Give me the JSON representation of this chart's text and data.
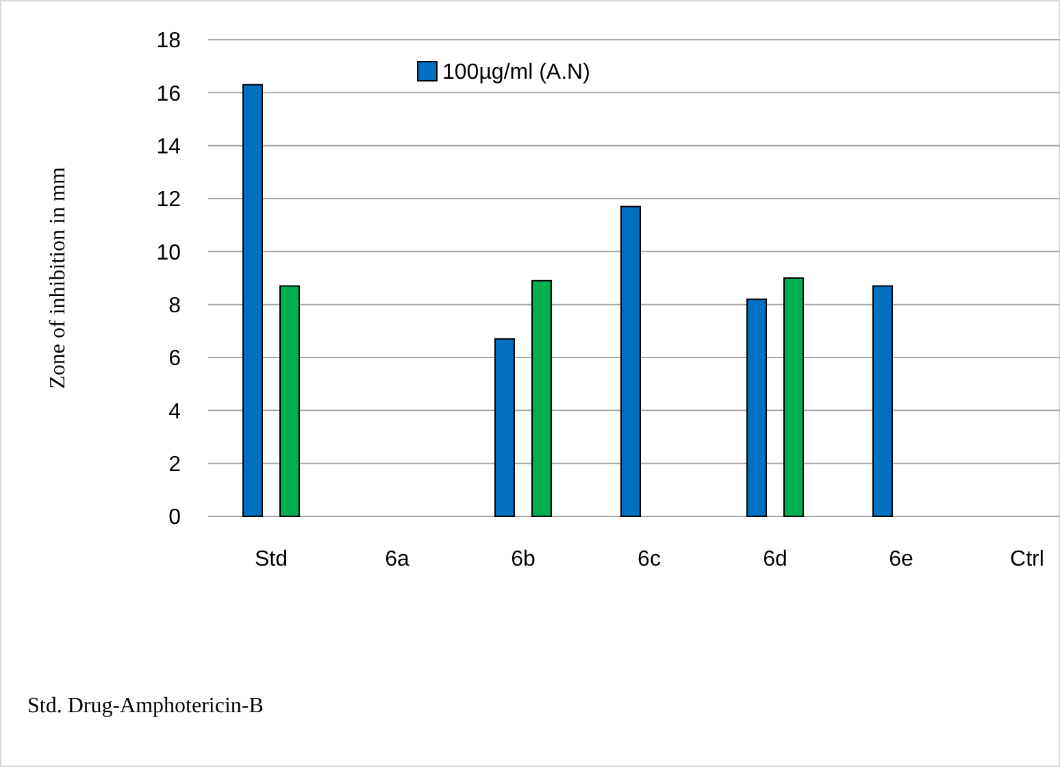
{
  "chart_data": {
    "type": "bar",
    "ylabel": "Zone  of inhibition in mm",
    "categories": [
      "Std",
      "6a",
      "6b",
      "6c",
      "6d",
      "6e",
      "Ctrl"
    ],
    "series": [
      {
        "name": "100µg/ml (A.N)",
        "color": "#0070c0",
        "values": [
          16.3,
          0,
          6.7,
          11.7,
          8.2,
          8.7,
          0
        ]
      },
      {
        "color": "#00b050",
        "values": [
          8.7,
          0,
          8.9,
          0,
          9.0,
          0,
          0
        ]
      }
    ],
    "ylim": [
      0,
      18
    ],
    "yticks": [
      0,
      2,
      4,
      6,
      8,
      10,
      12,
      14,
      16,
      18
    ],
    "grid": "y",
    "legend": "top",
    "annotations": [
      "Std. Drug-Amphotericin-B"
    ]
  }
}
